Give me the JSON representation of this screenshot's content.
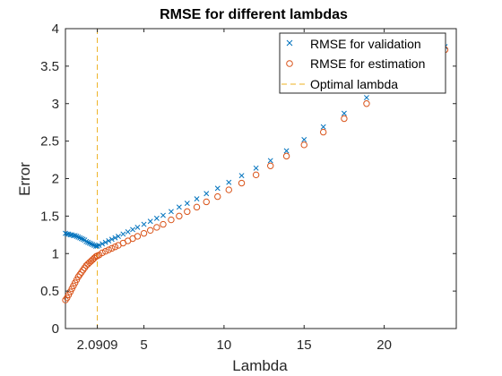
{
  "chart_data": {
    "type": "scatter",
    "title": "RMSE for different lambdas",
    "xlabel": "Lambda",
    "ylabel": "Error",
    "xlim": [
      0.1,
      24.5
    ],
    "ylim": [
      0,
      4
    ],
    "xticks": [
      2.0909,
      5,
      10,
      15,
      20
    ],
    "xtick_labels": [
      "2.0909",
      "5",
      "10",
      "15",
      "20"
    ],
    "yticks": [
      0,
      0.5,
      1,
      1.5,
      2,
      2.5,
      3,
      3.5,
      4
    ],
    "ytick_labels": [
      "0",
      "0.5",
      "1",
      "1.5",
      "2",
      "2.5",
      "3",
      "3.5",
      "4"
    ],
    "grid": false,
    "legend_position": "top-right",
    "optimal_lambda": 2.0909,
    "series": [
      {
        "name": "RMSE for validation",
        "marker": "x",
        "color": "#0072BD",
        "x": [
          0.1,
          0.2,
          0.3,
          0.4,
          0.5,
          0.6,
          0.7,
          0.8,
          0.9,
          1.0,
          1.1,
          1.2,
          1.3,
          1.4,
          1.5,
          1.6,
          1.7,
          1.8,
          1.9,
          2.0,
          2.09,
          2.2,
          2.4,
          2.6,
          2.8,
          3.0,
          3.2,
          3.4,
          3.7,
          4.0,
          4.3,
          4.6,
          5.0,
          5.4,
          5.8,
          6.2,
          6.7,
          7.2,
          7.7,
          8.3,
          8.9,
          9.6,
          10.3,
          11.1,
          12.0,
          12.9,
          13.9,
          15.0,
          16.2,
          17.5,
          18.9,
          20.4,
          22.0,
          23.8
        ],
        "y": [
          1.27,
          1.26,
          1.26,
          1.25,
          1.25,
          1.24,
          1.24,
          1.23,
          1.22,
          1.21,
          1.2,
          1.19,
          1.18,
          1.16,
          1.15,
          1.14,
          1.13,
          1.12,
          1.11,
          1.1,
          1.1,
          1.11,
          1.13,
          1.15,
          1.17,
          1.19,
          1.21,
          1.23,
          1.26,
          1.29,
          1.32,
          1.35,
          1.39,
          1.43,
          1.47,
          1.51,
          1.56,
          1.62,
          1.67,
          1.73,
          1.8,
          1.87,
          1.95,
          2.04,
          2.14,
          2.24,
          2.37,
          2.52,
          2.69,
          2.87,
          3.08,
          3.3,
          3.52,
          3.76
        ]
      },
      {
        "name": "RMSE for estimation",
        "marker": "o",
        "color": "#D95319",
        "x": [
          0.1,
          0.2,
          0.3,
          0.4,
          0.5,
          0.6,
          0.7,
          0.8,
          0.9,
          1.0,
          1.1,
          1.2,
          1.3,
          1.4,
          1.5,
          1.6,
          1.7,
          1.8,
          1.9,
          2.0,
          2.09,
          2.2,
          2.4,
          2.6,
          2.8,
          3.0,
          3.2,
          3.4,
          3.7,
          4.0,
          4.3,
          4.6,
          5.0,
          5.4,
          5.8,
          6.2,
          6.7,
          7.2,
          7.7,
          8.3,
          8.9,
          9.6,
          10.3,
          11.1,
          12.0,
          12.9,
          13.9,
          15.0,
          16.2,
          17.5,
          18.9,
          20.4,
          22.0,
          23.8
        ],
        "y": [
          0.38,
          0.41,
          0.45,
          0.49,
          0.53,
          0.57,
          0.61,
          0.65,
          0.69,
          0.72,
          0.75,
          0.78,
          0.81,
          0.84,
          0.86,
          0.88,
          0.9,
          0.92,
          0.94,
          0.96,
          0.97,
          0.98,
          1.01,
          1.03,
          1.05,
          1.07,
          1.09,
          1.11,
          1.14,
          1.17,
          1.2,
          1.23,
          1.27,
          1.31,
          1.35,
          1.39,
          1.45,
          1.5,
          1.56,
          1.62,
          1.69,
          1.76,
          1.85,
          1.94,
          2.05,
          2.17,
          2.3,
          2.45,
          2.62,
          2.8,
          3.0,
          3.22,
          3.45,
          3.72
        ]
      }
    ],
    "legend": [
      {
        "label": "RMSE for validation",
        "marker": "x",
        "color": "#0072BD"
      },
      {
        "label": "RMSE for estimation",
        "marker": "o",
        "color": "#D95319"
      },
      {
        "label": "Optimal lambda",
        "marker": "dashed-line",
        "color": "#EDB120"
      }
    ]
  }
}
